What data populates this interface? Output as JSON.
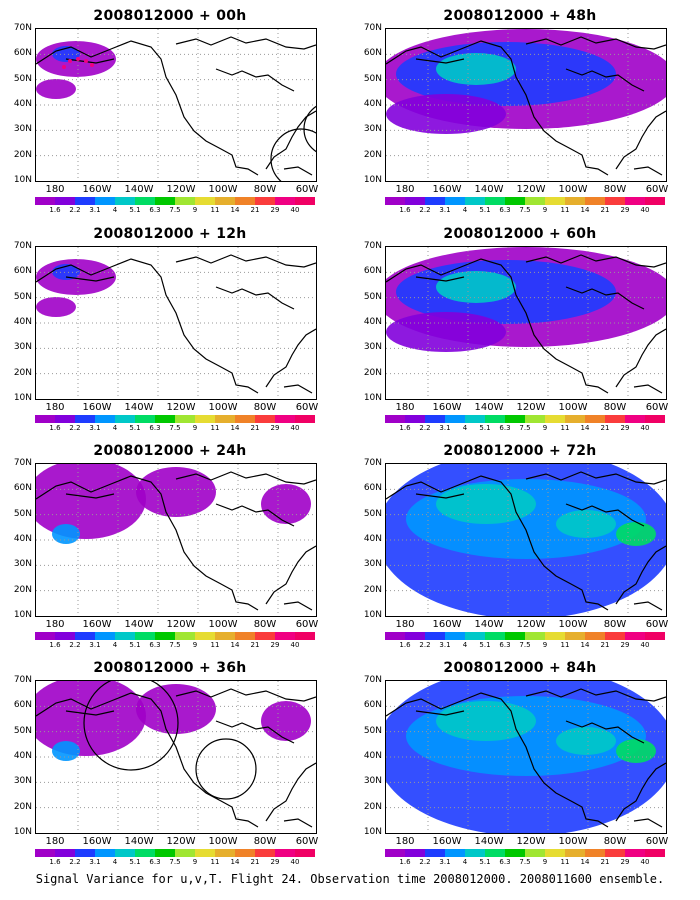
{
  "panels": [
    {
      "title": "2008012000 + 00h",
      "level": 0,
      "circles": [
        [
          265,
          130,
          30
        ],
        [
          295,
          100,
          27
        ]
      ],
      "dots": true
    },
    {
      "title": "2008012000 + 48h",
      "level": 2,
      "circles": [],
      "dots": false
    },
    {
      "title": "2008012000 + 12h",
      "level": 0,
      "circles": [],
      "dots": false
    },
    {
      "title": "2008012000 + 60h",
      "level": 2,
      "circles": [],
      "dots": false
    },
    {
      "title": "2008012000 + 24h",
      "level": 1,
      "circles": [],
      "dots": false
    },
    {
      "title": "2008012000 + 72h",
      "level": 3,
      "circles": [],
      "dots": false
    },
    {
      "title": "2008012000 + 36h",
      "level": 1,
      "circles": [
        [
          95,
          42,
          47
        ],
        [
          190,
          88,
          30
        ]
      ],
      "dots": false
    },
    {
      "title": "2008012000 + 84h",
      "level": 3,
      "circles": [],
      "dots": false
    }
  ],
  "lat_labels": [
    "70N",
    "60N",
    "50N",
    "40N",
    "30N",
    "20N",
    "10N"
  ],
  "lon_labels": [
    "180",
    "160W",
    "140W",
    "120W",
    "100W",
    "80W",
    "60W"
  ],
  "colorbar": {
    "labels": [
      "1.6",
      "2.2",
      "3.1",
      "4",
      "5.1",
      "6.3",
      "7.5",
      "9",
      "11",
      "14",
      "21",
      "29",
      "40"
    ],
    "colors": [
      "#a000c8",
      "#8200dc",
      "#1e3cff",
      "#0096ff",
      "#00c8c8",
      "#00dc64",
      "#00c800",
      "#a0e632",
      "#e6dc32",
      "#e6af2d",
      "#f08228",
      "#fa3c3c",
      "#f00082"
    ]
  },
  "caption": "Signal Variance for u,v,T. Flight 24. Observation time 2008012000. 2008011600 ensemble."
}
